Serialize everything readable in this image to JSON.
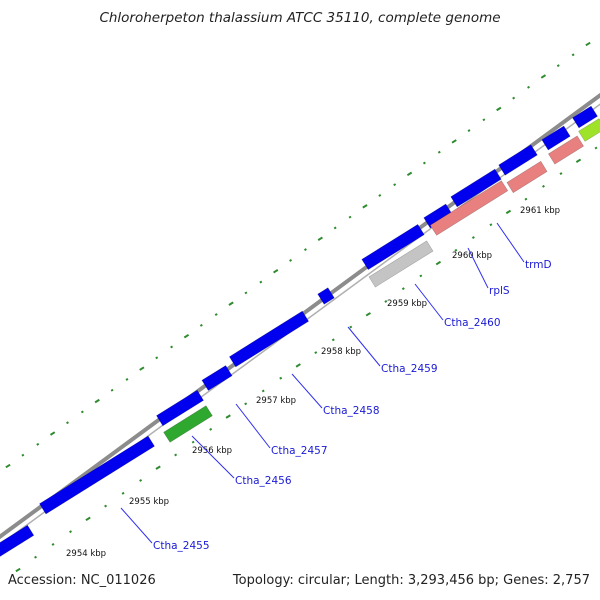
{
  "title": "Chloroherpeton thalassium ATCC 35110, complete genome",
  "accession": "Accession: NC_011026",
  "summary": "Topology: circular; Length: 3,293,456 bp; Genes: 2,757",
  "colors": {
    "backbone": "#8c8c8c",
    "cds": "#0000ee",
    "rrna_trna": "#e88080",
    "pseudo": "#c4c4c4",
    "highlight_green": "#2fa82f",
    "lime": "#9ee22a",
    "tick": "#2e8b2e",
    "label_line": "#3030ee",
    "label_text": "#1a1ad6"
  },
  "scale_labels": [
    "2954 kbp",
    "2955 kbp",
    "2956 kbp",
    "2957 kbp",
    "2958 kbp",
    "2959 kbp",
    "2960 kbp",
    "2961 kbp"
  ],
  "gene_labels": [
    "Ctha_2455",
    "Ctha_2456",
    "Ctha_2457",
    "Ctha_2458",
    "Ctha_2459",
    "Ctha_2460",
    "rplS",
    "trmD"
  ]
}
